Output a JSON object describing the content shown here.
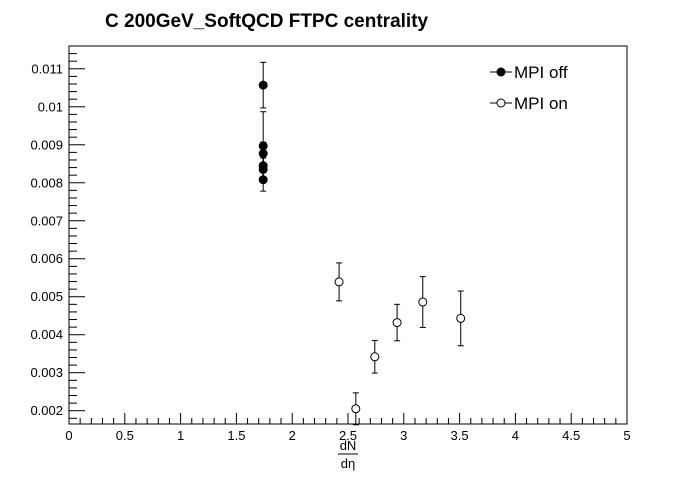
{
  "chart_data": {
    "type": "scatter",
    "title": "C 200GeV_SoftQCD FTPC centrality",
    "xlabel_numerator": "dN",
    "xlabel_denominator": "dη",
    "ylabel": "",
    "xlim": [
      0,
      5
    ],
    "ylim": [
      0.00165,
      0.0116
    ],
    "x_ticks": [
      "0",
      "0.5",
      "1",
      "1.5",
      "2",
      "2.5",
      "3",
      "3.5",
      "4",
      "4.5",
      "5"
    ],
    "x_tick_values": [
      0,
      0.5,
      1,
      1.5,
      2,
      2.5,
      3,
      3.5,
      4,
      4.5,
      5
    ],
    "y_ticks": [
      "0.002",
      "0.003",
      "0.004",
      "0.005",
      "0.006",
      "0.007",
      "0.008",
      "0.009",
      "0.01",
      "0.011"
    ],
    "y_tick_values": [
      0.002,
      0.003,
      0.004,
      0.005,
      0.006,
      0.007,
      0.008,
      0.009,
      0.01,
      0.011
    ],
    "grid": false,
    "legend_position": "top-right",
    "series": [
      {
        "name": "MPI off",
        "marker": "filled-circle",
        "points": [
          {
            "x": 1.74,
            "y": 0.01057,
            "err": 0.0006
          },
          {
            "x": 1.74,
            "y": 0.00897,
            "err": 0.0009
          },
          {
            "x": 1.74,
            "y": 0.00877,
            "err": 0.0003
          },
          {
            "x": 1.74,
            "y": 0.00845,
            "err": 0.0003
          },
          {
            "x": 1.74,
            "y": 0.00835,
            "err": 0.0003
          },
          {
            "x": 1.74,
            "y": 0.00808,
            "err": 0.0003
          }
        ]
      },
      {
        "name": "MPI on",
        "marker": "open-circle",
        "points": [
          {
            "x": 2.42,
            "y": 0.00539,
            "err": 0.0005
          },
          {
            "x": 2.57,
            "y": 0.00205,
            "err": 0.00042
          },
          {
            "x": 2.74,
            "y": 0.00342,
            "err": 0.00043
          },
          {
            "x": 2.94,
            "y": 0.00432,
            "err": 0.00048
          },
          {
            "x": 3.17,
            "y": 0.00486,
            "err": 0.00067
          },
          {
            "x": 3.51,
            "y": 0.00443,
            "err": 0.00072
          }
        ]
      }
    ]
  }
}
